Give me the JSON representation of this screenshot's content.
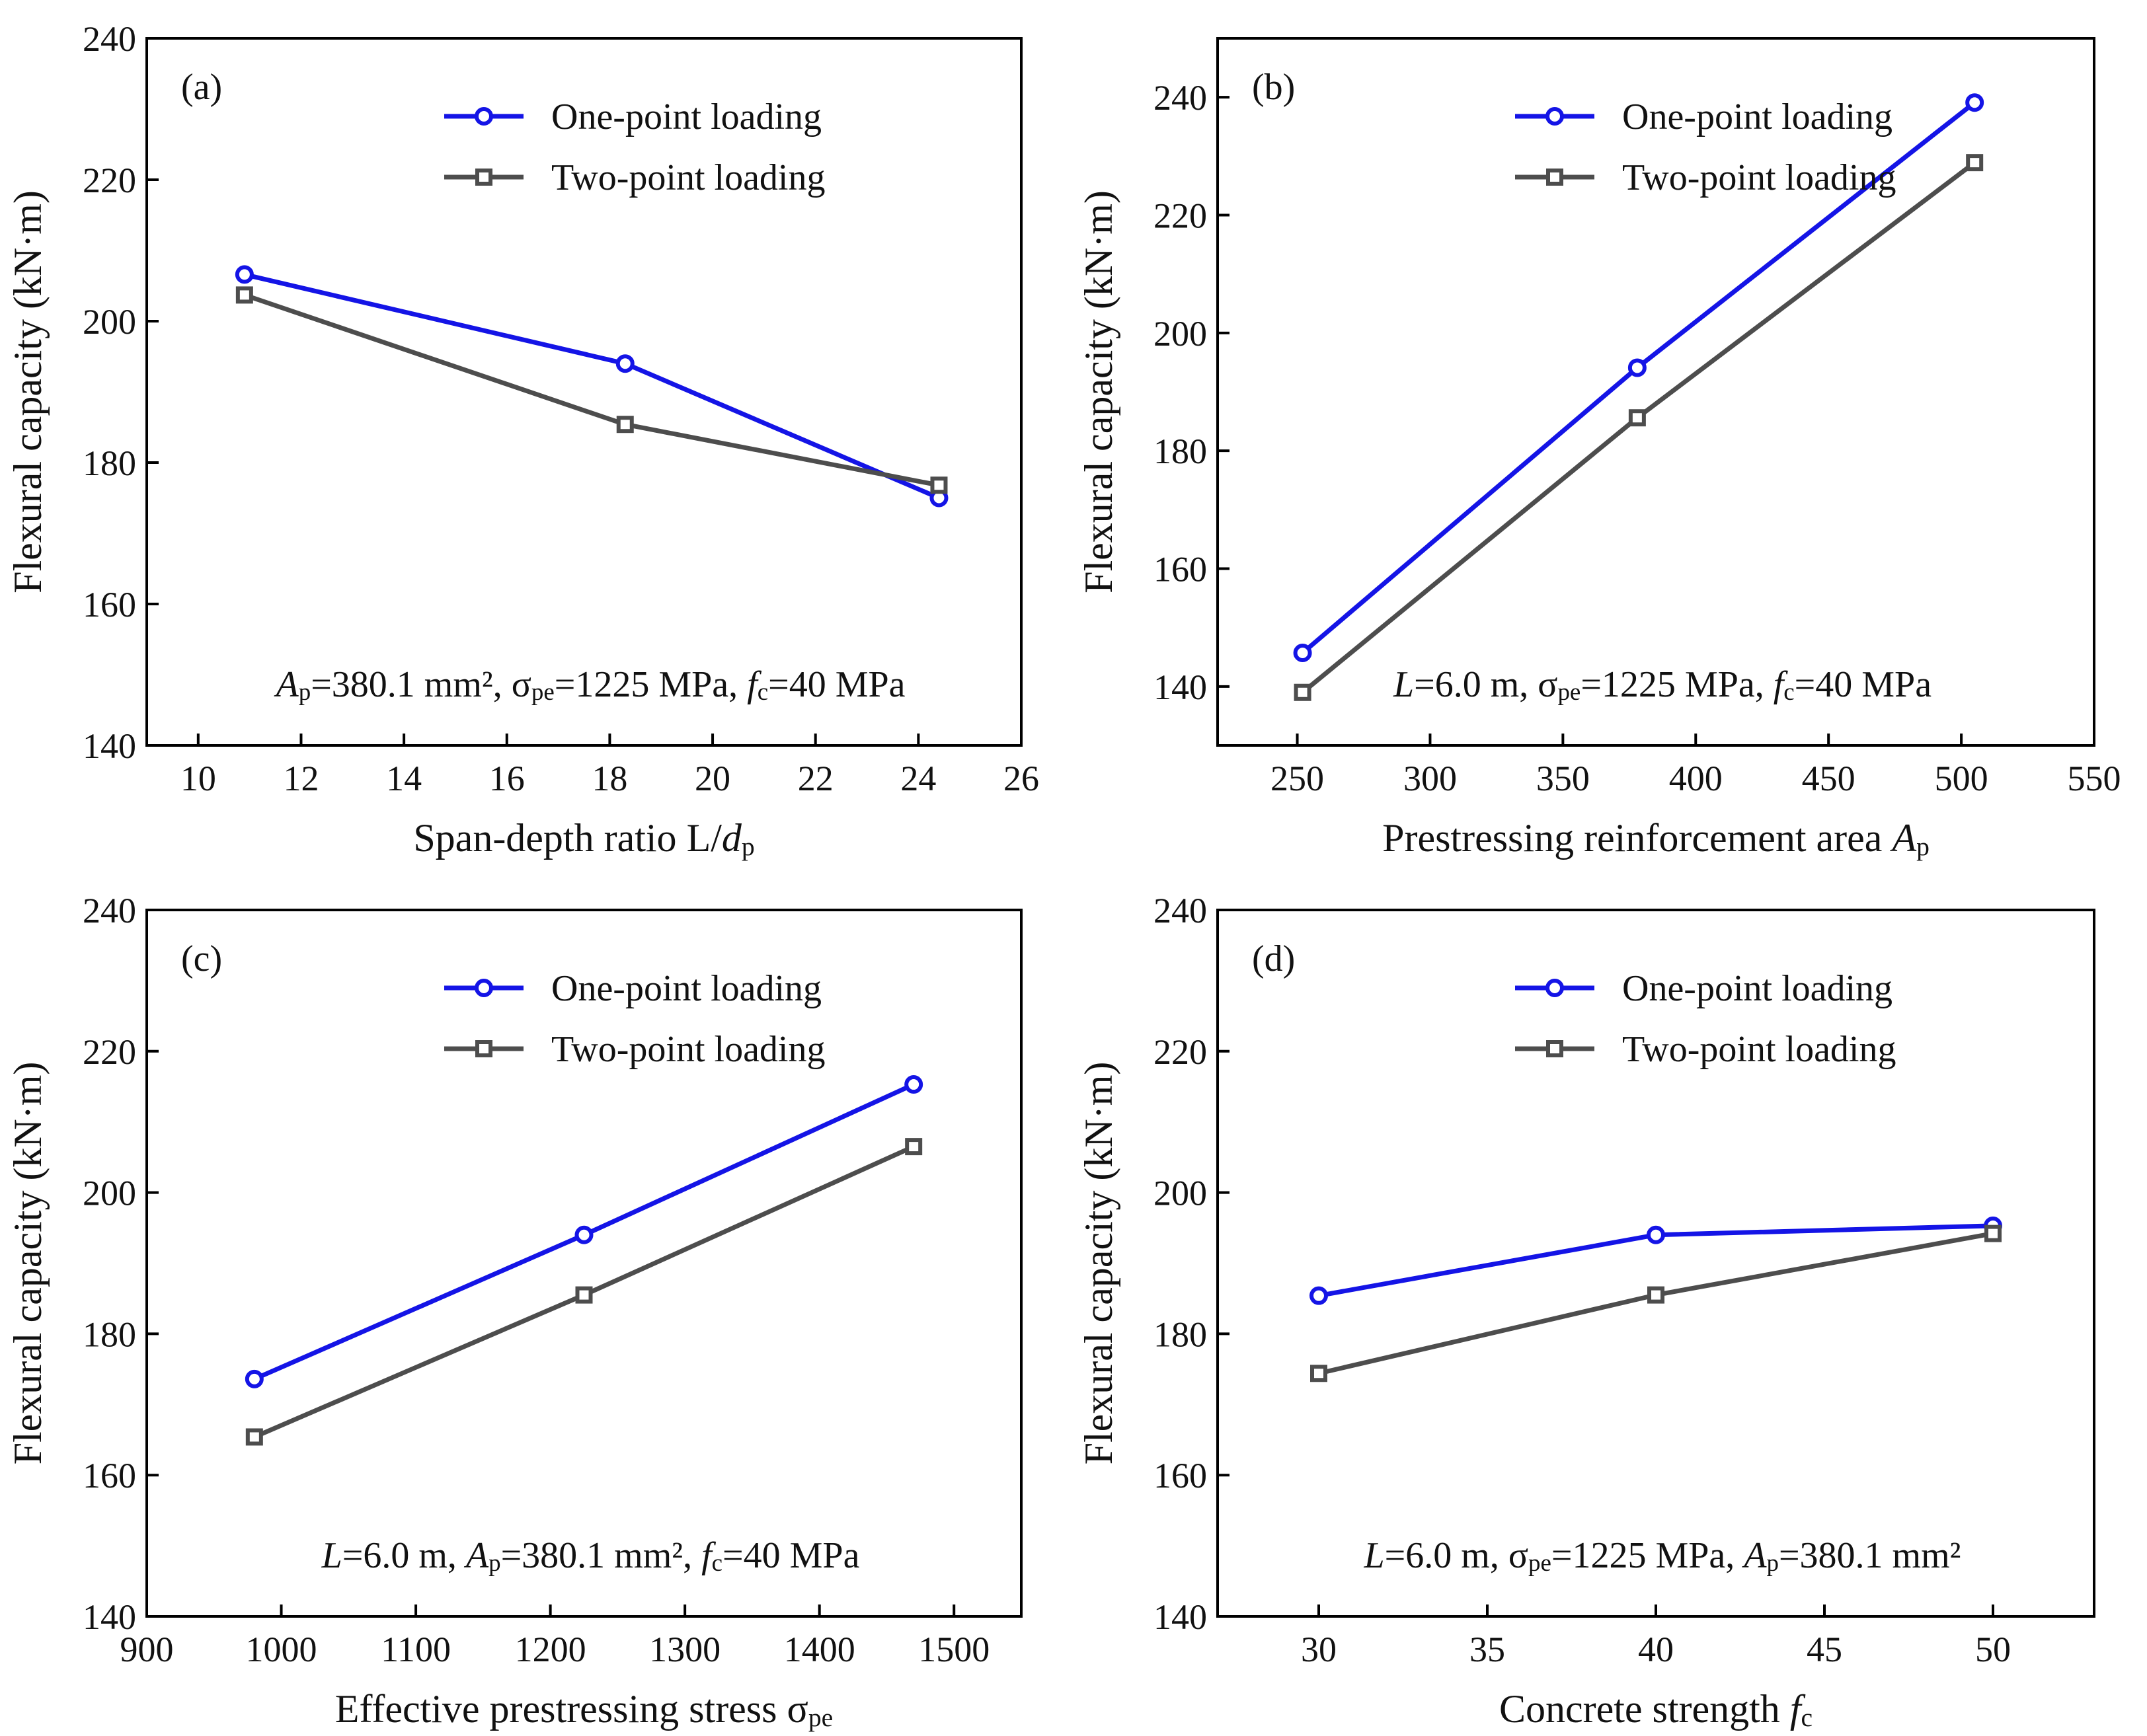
{
  "figure": {
    "colors": {
      "one_point": "#1414e6",
      "two_point": "#4d4d4d",
      "axis": "#000000"
    },
    "legend_marker_icons": [
      "circle-marker-icon",
      "square-marker-icon"
    ]
  },
  "chart_data": [
    {
      "type": "line",
      "panel_label": "(a)",
      "xlabel": "Span-depth ratio L/dp",
      "ylabel": "Flexural capacity (kN·m)",
      "xlim": [
        9,
        26
      ],
      "ylim": [
        140,
        240
      ],
      "xticks": [
        10,
        12,
        14,
        16,
        18,
        20,
        22,
        24,
        26
      ],
      "yticks": [
        140,
        160,
        180,
        200,
        220,
        240
      ],
      "annotation": "Ap=380.1 mm², σpe=1225 MPa, fc=40 MPa",
      "legend": [
        "One-point loading",
        "Two-point loading"
      ],
      "series": [
        {
          "name": "One-point loading",
          "marker": "circle",
          "x": [
            10.9,
            18.3,
            24.4
          ],
          "values": [
            206.6,
            194.0,
            175.0
          ]
        },
        {
          "name": "Two-point loading",
          "marker": "square",
          "x": [
            10.9,
            18.3,
            24.4
          ],
          "values": [
            203.7,
            185.4,
            176.8
          ]
        }
      ]
    },
    {
      "type": "line",
      "panel_label": "(b)",
      "xlabel": "Prestressing reinforcement area Ap",
      "ylabel": "Flexural capacity (kN·m)",
      "xlim": [
        220,
        550
      ],
      "ylim": [
        130,
        250
      ],
      "xticks": [
        250,
        300,
        350,
        400,
        450,
        500,
        550
      ],
      "yticks": [
        140,
        160,
        180,
        200,
        220,
        240
      ],
      "annotation": "L=6.0 m, σpe=1225 MPa, fc=40 MPa",
      "legend": [
        "One-point loading",
        "Two-point loading"
      ],
      "series": [
        {
          "name": "One-point loading",
          "marker": "circle",
          "x": [
            252,
            378,
            505
          ],
          "values": [
            145.7,
            194.1,
            239.1
          ]
        },
        {
          "name": "Two-point loading",
          "marker": "square",
          "x": [
            252,
            378,
            505
          ],
          "values": [
            139.0,
            185.6,
            228.9
          ]
        }
      ]
    },
    {
      "type": "line",
      "panel_label": "(c)",
      "xlabel": "Effective prestressing stress σpe",
      "ylabel": "Flexural capacity (kN·m)",
      "xlim": [
        900,
        1550
      ],
      "ylim": [
        140,
        240
      ],
      "xticks": [
        900,
        1000,
        1100,
        1200,
        1300,
        1400,
        1500
      ],
      "yticks": [
        140,
        160,
        180,
        200,
        220,
        240
      ],
      "annotation": "L=6.0 m, Ap=380.1 mm², fc=40 MPa",
      "legend": [
        "One-point loading",
        "Two-point loading"
      ],
      "series": [
        {
          "name": "One-point loading",
          "marker": "circle",
          "x": [
            980,
            1225,
            1470
          ],
          "values": [
            173.6,
            194.0,
            215.3
          ]
        },
        {
          "name": "Two-point loading",
          "marker": "square",
          "x": [
            980,
            1225,
            1470
          ],
          "values": [
            165.4,
            185.5,
            206.5
          ]
        }
      ]
    },
    {
      "type": "line",
      "panel_label": "(d)",
      "xlabel": "Concrete strength fc",
      "ylabel": "Flexural capacity (kN·m)",
      "xlim": [
        27,
        53
      ],
      "ylim": [
        140,
        240
      ],
      "xticks": [
        30,
        35,
        40,
        45,
        50
      ],
      "yticks": [
        140,
        160,
        180,
        200,
        220,
        240
      ],
      "annotation": "L=6.0 m, σpe=1225 MPa, Ap=380.1 mm²",
      "legend": [
        "One-point loading",
        "Two-point loading"
      ],
      "series": [
        {
          "name": "One-point loading",
          "marker": "circle",
          "x": [
            30,
            40,
            50
          ],
          "values": [
            185.4,
            194.0,
            195.3
          ]
        },
        {
          "name": "Two-point loading",
          "marker": "square",
          "x": [
            30,
            40,
            50
          ],
          "values": [
            174.4,
            185.5,
            194.2
          ]
        }
      ]
    }
  ]
}
